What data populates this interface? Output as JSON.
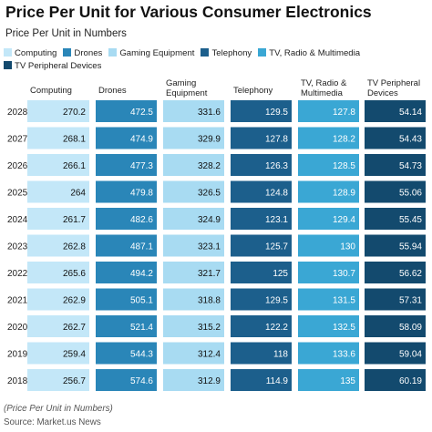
{
  "title": "Price Per Unit for Various Consumer Electronics",
  "subtitle": "Price Per Unit in Numbers",
  "note": "(Price Per Unit in Numbers)",
  "source": "Source: Market.us News",
  "chart_data": {
    "type": "table",
    "title": "Price Per Unit for Various Consumer Electronics",
    "legend_position": "top",
    "row_labels": [
      "2028",
      "2027",
      "2026",
      "2025",
      "2024",
      "2023",
      "2022",
      "2021",
      "2020",
      "2019",
      "2018"
    ],
    "columns": [
      {
        "name": "Computing",
        "header_lines": [
          "Computing"
        ],
        "color": "#c3e7f8",
        "values": [
          270.2,
          268.1,
          266.1,
          264,
          261.7,
          262.8,
          265.6,
          262.9,
          262.7,
          259.4,
          256.7
        ]
      },
      {
        "name": "Drones",
        "header_lines": [
          "Drones"
        ],
        "color": "#2a86b8",
        "values": [
          472.5,
          474.9,
          477.3,
          479.8,
          482.6,
          487.1,
          494.2,
          505.1,
          521.4,
          544.3,
          574.6
        ]
      },
      {
        "name": "Gaming Equipment",
        "header_lines": [
          "Gaming",
          "Equipment"
        ],
        "color": "#a8dbf2",
        "values": [
          331.6,
          329.9,
          328.2,
          326.5,
          324.9,
          323.1,
          321.7,
          318.8,
          315.2,
          312.4,
          312.9
        ]
      },
      {
        "name": "Telephony",
        "header_lines": [
          "Telephony"
        ],
        "color": "#1c5f8c",
        "values": [
          129.5,
          127.8,
          126.3,
          124.8,
          123.1,
          125.7,
          125,
          129.5,
          122.2,
          118,
          114.9
        ]
      },
      {
        "name": "TV, Radio & Multimedia",
        "header_lines": [
          "TV, Radio &",
          "Multimedia"
        ],
        "color": "#3aa7d4",
        "values": [
          127.8,
          128.2,
          128.5,
          128.9,
          129.4,
          130,
          130.7,
          131.5,
          132.5,
          133.6,
          135
        ]
      },
      {
        "name": "TV Peripheral Devices",
        "header_lines": [
          "TV Peripheral",
          "Devices"
        ],
        "color": "#134a6e",
        "values": [
          54.14,
          54.43,
          54.73,
          55.06,
          55.45,
          55.94,
          56.62,
          57.31,
          58.09,
          59.04,
          60.19
        ]
      }
    ]
  }
}
